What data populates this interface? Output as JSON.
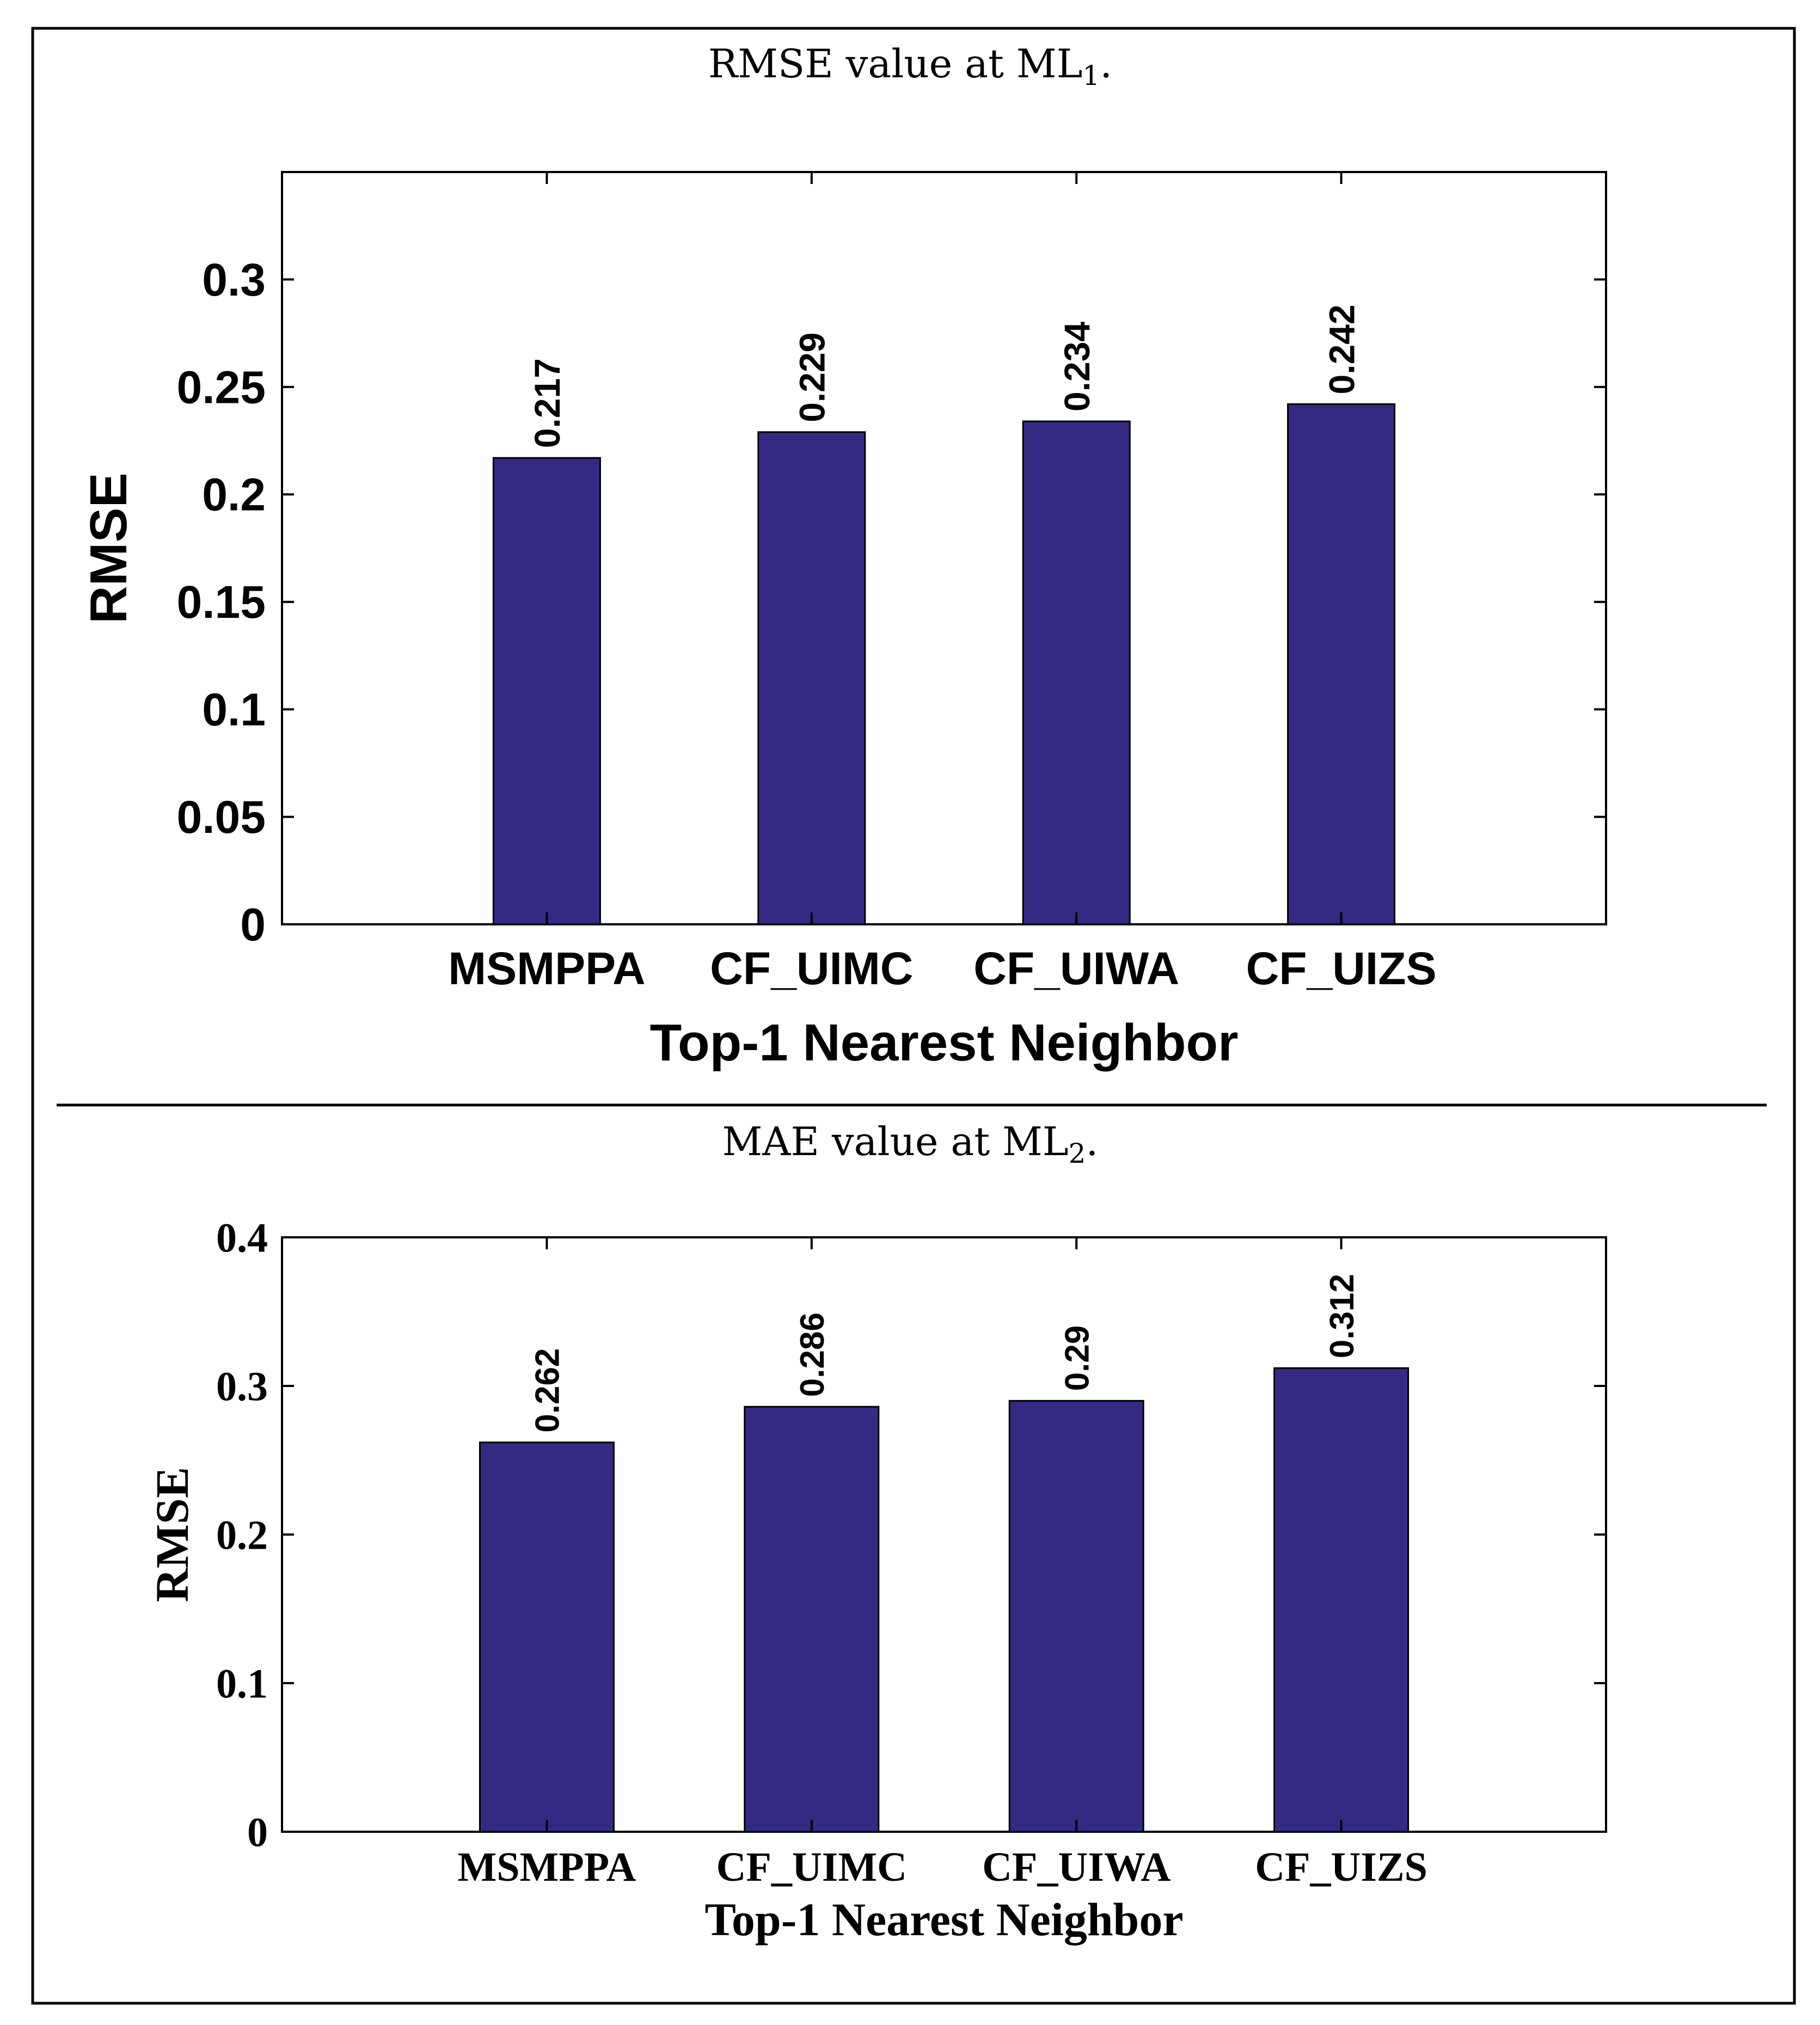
{
  "panels": [
    {
      "caption": "RMSE value at ML",
      "caption_sub": "1",
      "caption_end": "."
    },
    {
      "caption": "MAE value at ML",
      "caption_sub": "2",
      "caption_end": "."
    }
  ],
  "colors": {
    "bar_fill": "#342a84",
    "bar_stroke": "#000000",
    "frame": "#000000",
    "background": "#ffffff"
  },
  "chart_data": [
    {
      "type": "bar",
      "title": "",
      "categories": [
        "MSMPPA",
        "CF_UIMC",
        "CF_UIWA",
        "CF_UIZS"
      ],
      "values": [
        0.217,
        0.229,
        0.234,
        0.242
      ],
      "value_labels": [
        "0.217",
        "0.229",
        "0.234",
        "0.242"
      ],
      "xlabel": "Top-1 Nearest Neighbor",
      "ylabel": "RMSE",
      "ylim": [
        0,
        0.35
      ],
      "yticks": [
        0,
        0.05,
        0.1,
        0.15,
        0.2,
        0.25,
        0.3
      ],
      "ytick_labels": [
        "0",
        "0.05",
        "0.1",
        "0.15",
        "0.2",
        "0.25",
        "0.3"
      ],
      "grid": false,
      "font_style": "sans"
    },
    {
      "type": "bar",
      "title": "",
      "categories": [
        "MSMPPA",
        "CF_UIMC",
        "CF_UIWA",
        "CF_UIZS"
      ],
      "values": [
        0.262,
        0.286,
        0.29,
        0.312
      ],
      "value_labels": [
        "0.262",
        "0.286",
        "0.29",
        "0.312"
      ],
      "xlabel": "Top-1 Nearest Neighbor",
      "ylabel": "RMSE",
      "ylim": [
        0,
        0.4
      ],
      "yticks": [
        0,
        0.1,
        0.2,
        0.3,
        0.4
      ],
      "ytick_labels": [
        "0",
        "0.1",
        "0.2",
        "0.3",
        "0.4"
      ],
      "grid": false,
      "font_style": "serif"
    }
  ]
}
